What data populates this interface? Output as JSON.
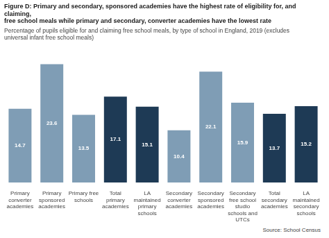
{
  "chart_data": {
    "type": "bar",
    "title": [
      "Figure D: Primary and secondary, sponsored academies have the highest rate of eligibility for, and claiming,",
      "free school meals while primary and secondary, converter academies have the lowest rate"
    ],
    "subtitle": [
      "Percentage of pupils eligible for and claiming free school meals, by type of school in England, 2019 (excludes",
      "universal infant free school meals)"
    ],
    "source": "Source: School Census",
    "categories": [
      "Primary\nconverter\nacademies",
      "Primary\nsponsored\nacademies",
      "Primary free\nschools",
      "Total\nprimary\nacademies",
      "LA\nmaintained\nprimary\nschools",
      "Secondary\nconverter\nacademies",
      "Secondary\nsponsored\nacademies",
      "Secondary\nfree school\nstudio\nschools and\nUTCs",
      "Total\nsecondary\nacademies",
      "LA\nmaintained\nsecondary\nschools"
    ],
    "values": [
      14.7,
      23.6,
      13.5,
      17.1,
      15.1,
      10.4,
      22.1,
      15.9,
      13.7,
      15.2
    ],
    "colors": [
      "#7f9db5",
      "#7f9db5",
      "#7f9db5",
      "#1e3a55",
      "#1e3a55",
      "#7f9db5",
      "#7f9db5",
      "#7f9db5",
      "#1e3a55",
      "#1e3a55"
    ],
    "ylim": [
      0,
      27
    ],
    "grid": false,
    "data_labels": true,
    "tick_labels": "x"
  }
}
